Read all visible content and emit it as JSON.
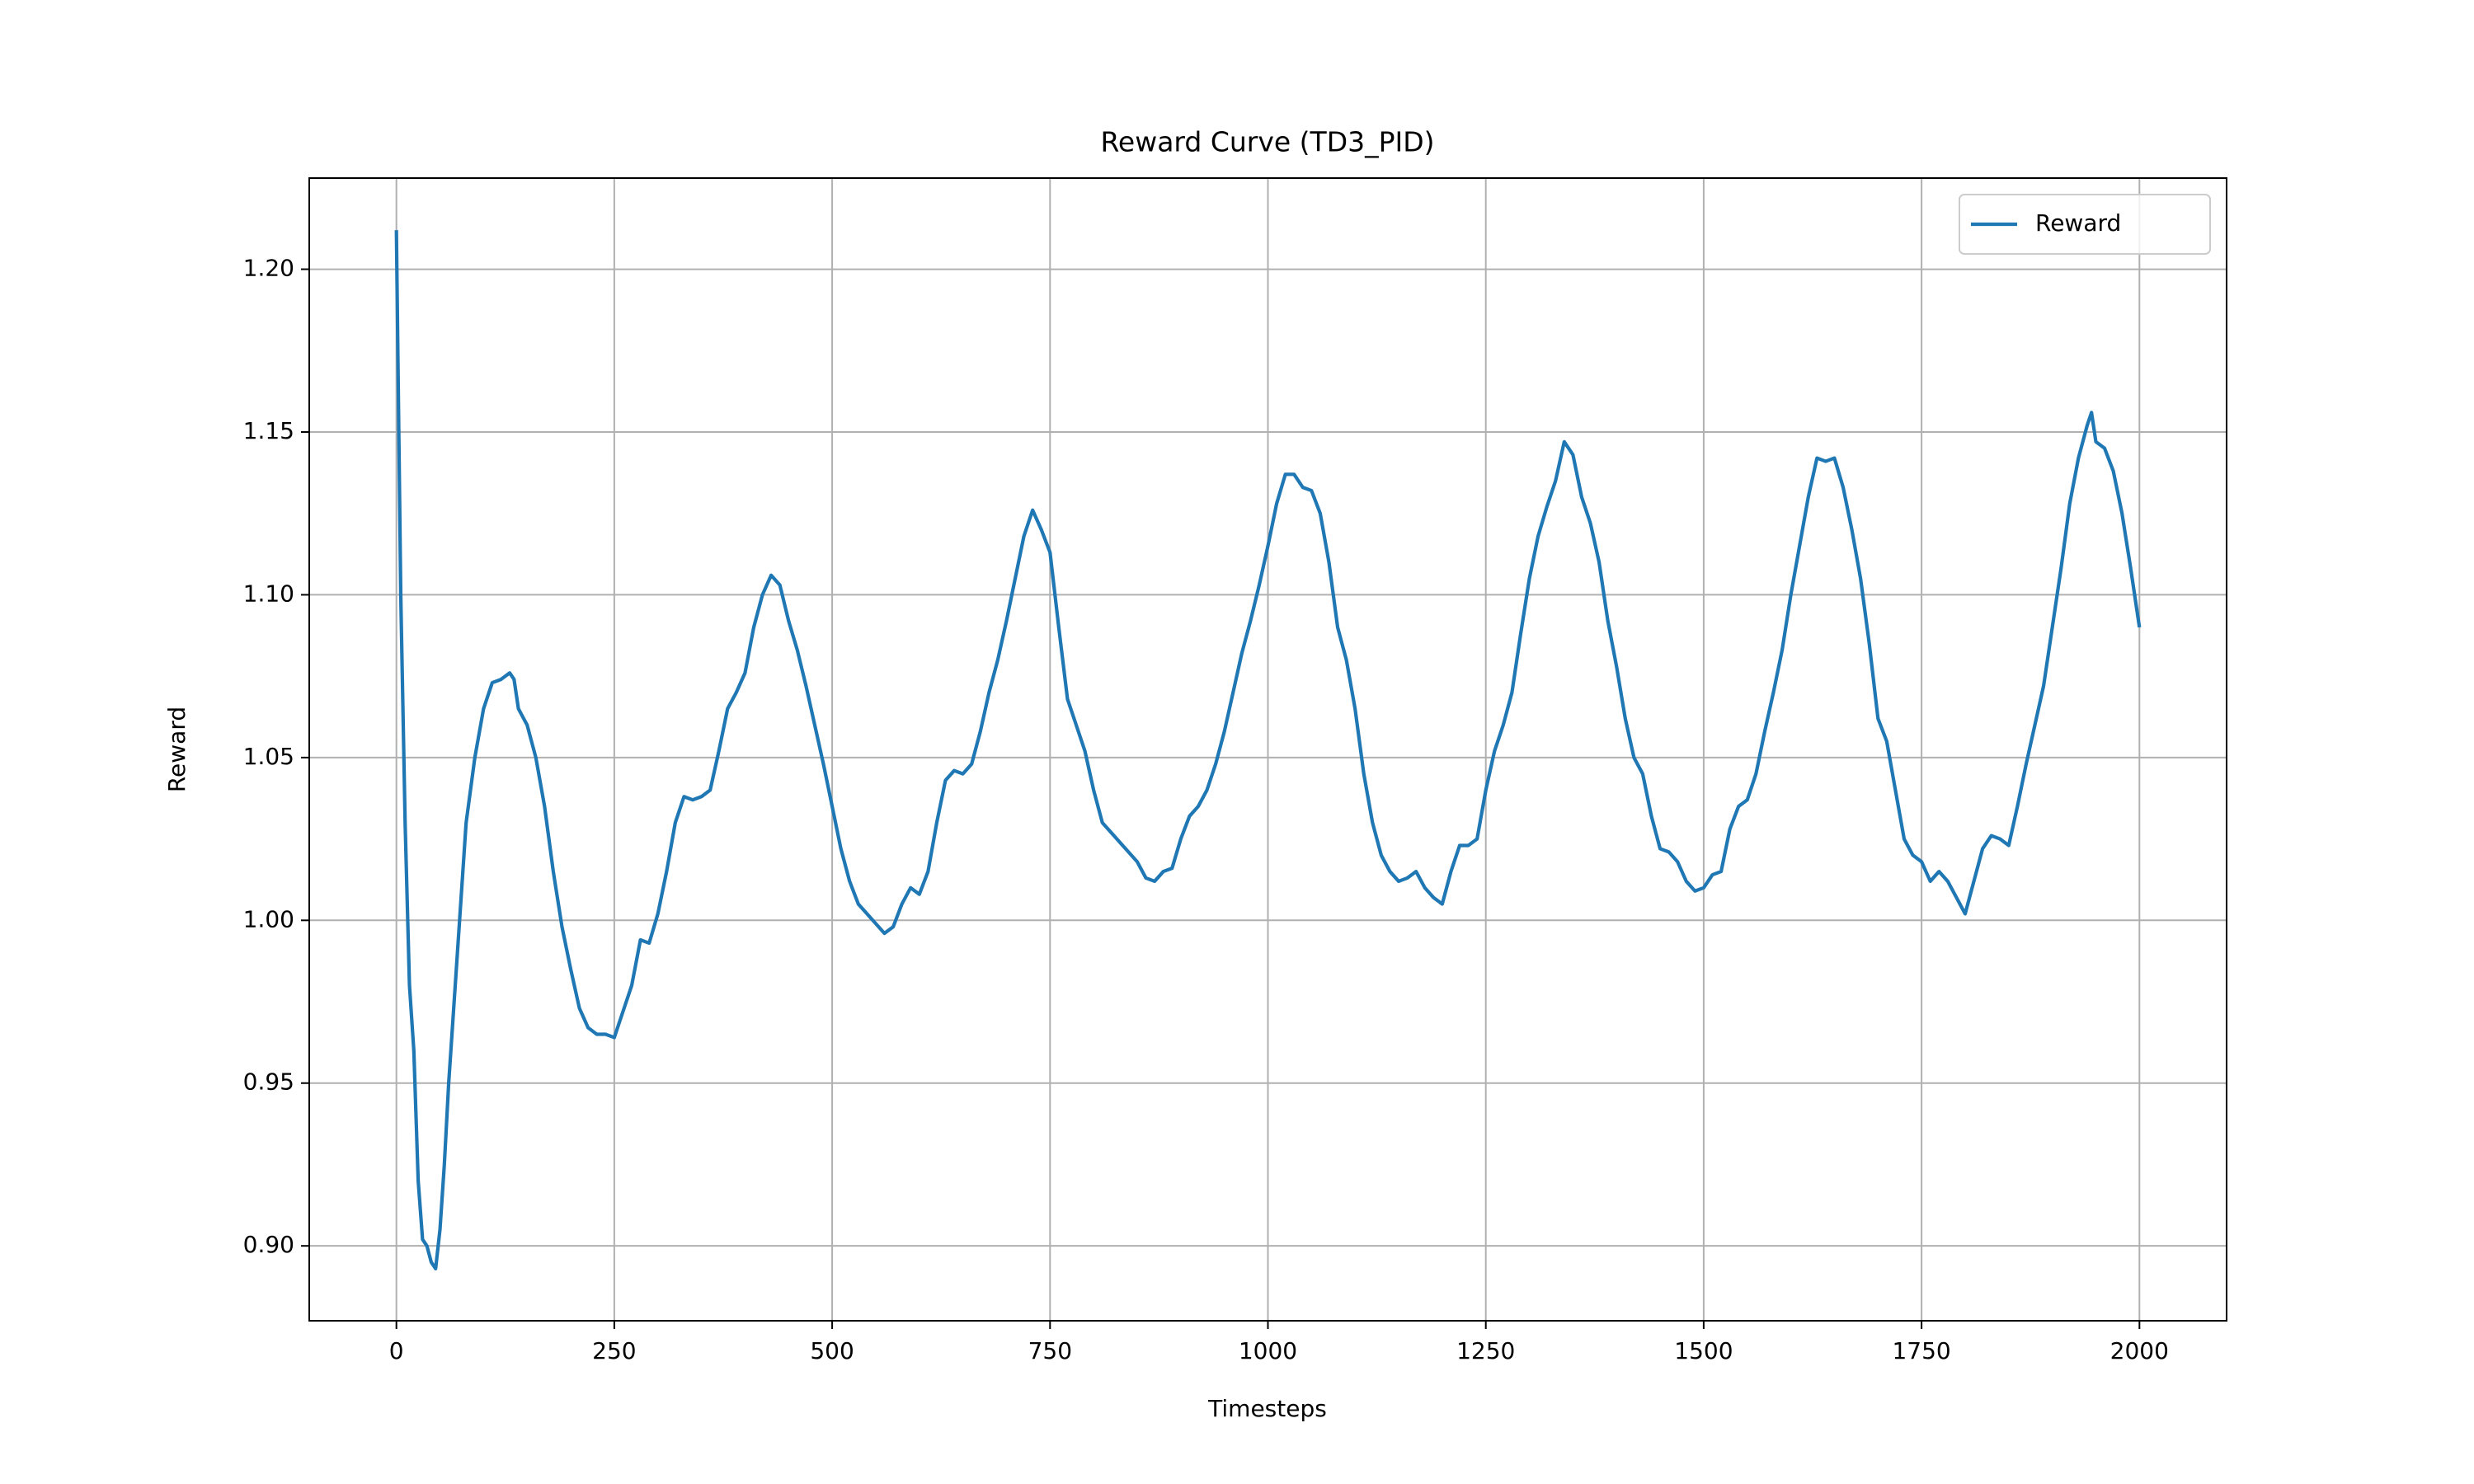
{
  "chart_data": {
    "type": "line",
    "title": "Reward Curve (TD3_PID)",
    "x_label": "Timesteps",
    "y_label": "Reward",
    "x": [
      0,
      5,
      10,
      15,
      20,
      25,
      30,
      35,
      40,
      45,
      50,
      55,
      60,
      70,
      80,
      90,
      100,
      110,
      120,
      130,
      135,
      140,
      150,
      160,
      170,
      180,
      190,
      200,
      210,
      220,
      230,
      240,
      250,
      260,
      270,
      280,
      290,
      300,
      310,
      320,
      330,
      340,
      350,
      360,
      370,
      380,
      390,
      400,
      410,
      420,
      430,
      440,
      450,
      460,
      470,
      480,
      490,
      500,
      510,
      520,
      530,
      540,
      550,
      560,
      570,
      580,
      590,
      600,
      610,
      620,
      630,
      640,
      650,
      660,
      670,
      680,
      690,
      700,
      710,
      720,
      730,
      740,
      750,
      760,
      770,
      780,
      790,
      800,
      810,
      820,
      830,
      840,
      850,
      860,
      870,
      880,
      890,
      900,
      910,
      920,
      930,
      940,
      950,
      960,
      970,
      980,
      990,
      1000,
      1010,
      1020,
      1030,
      1040,
      1050,
      1060,
      1070,
      1080,
      1090,
      1100,
      1110,
      1120,
      1130,
      1140,
      1150,
      1160,
      1170,
      1180,
      1190,
      1200,
      1210,
      1220,
      1230,
      1240,
      1250,
      1260,
      1270,
      1280,
      1290,
      1300,
      1310,
      1320,
      1330,
      1340,
      1350,
      1360,
      1370,
      1380,
      1390,
      1400,
      1410,
      1420,
      1430,
      1440,
      1450,
      1460,
      1470,
      1480,
      1490,
      1500,
      1510,
      1520,
      1530,
      1540,
      1550,
      1560,
      1570,
      1580,
      1590,
      1600,
      1610,
      1620,
      1630,
      1640,
      1650,
      1660,
      1670,
      1680,
      1690,
      1700,
      1710,
      1720,
      1730,
      1740,
      1750,
      1760,
      1770,
      1780,
      1790,
      1800,
      1810,
      1820,
      1830,
      1840,
      1850,
      1860,
      1870,
      1880,
      1890,
      1900,
      1910,
      1920,
      1930,
      1940,
      1945,
      1950,
      1960,
      1970,
      1980,
      1990,
      2000
    ],
    "series": [
      {
        "name": "Reward",
        "color": "#1f77b4",
        "values": [
          1.212,
          1.1,
          1.03,
          0.98,
          0.96,
          0.92,
          0.902,
          0.9,
          0.895,
          0.893,
          0.905,
          0.925,
          0.95,
          0.99,
          1.03,
          1.05,
          1.065,
          1.073,
          1.074,
          1.076,
          1.074,
          1.065,
          1.06,
          1.05,
          1.035,
          1.015,
          0.998,
          0.985,
          0.973,
          0.967,
          0.965,
          0.965,
          0.964,
          0.972,
          0.98,
          0.994,
          0.993,
          1.002,
          1.015,
          1.03,
          1.038,
          1.037,
          1.038,
          1.04,
          1.052,
          1.065,
          1.07,
          1.076,
          1.09,
          1.1,
          1.106,
          1.103,
          1.092,
          1.083,
          1.072,
          1.06,
          1.048,
          1.035,
          1.022,
          1.012,
          1.005,
          1.002,
          0.999,
          0.996,
          0.998,
          1.005,
          1.01,
          1.008,
          1.015,
          1.03,
          1.043,
          1.046,
          1.045,
          1.048,
          1.058,
          1.07,
          1.08,
          1.092,
          1.105,
          1.118,
          1.126,
          1.12,
          1.113,
          1.09,
          1.068,
          1.06,
          1.052,
          1.04,
          1.03,
          1.027,
          1.024,
          1.021,
          1.018,
          1.013,
          1.012,
          1.015,
          1.016,
          1.025,
          1.032,
          1.035,
          1.04,
          1.048,
          1.058,
          1.07,
          1.082,
          1.092,
          1.103,
          1.115,
          1.128,
          1.137,
          1.137,
          1.133,
          1.132,
          1.125,
          1.11,
          1.09,
          1.08,
          1.065,
          1.045,
          1.03,
          1.02,
          1.015,
          1.012,
          1.013,
          1.015,
          1.01,
          1.007,
          1.005,
          1.015,
          1.023,
          1.023,
          1.025,
          1.04,
          1.052,
          1.06,
          1.07,
          1.088,
          1.105,
          1.118,
          1.127,
          1.135,
          1.147,
          1.143,
          1.13,
          1.122,
          1.11,
          1.092,
          1.078,
          1.062,
          1.05,
          1.045,
          1.032,
          1.022,
          1.021,
          1.018,
          1.012,
          1.009,
          1.01,
          1.014,
          1.015,
          1.028,
          1.035,
          1.037,
          1.045,
          1.058,
          1.07,
          1.083,
          1.1,
          1.115,
          1.13,
          1.142,
          1.141,
          1.142,
          1.133,
          1.12,
          1.105,
          1.085,
          1.062,
          1.055,
          1.04,
          1.025,
          1.02,
          1.018,
          1.012,
          1.015,
          1.012,
          1.007,
          1.002,
          1.012,
          1.022,
          1.026,
          1.025,
          1.023,
          1.035,
          1.048,
          1.06,
          1.072,
          1.09,
          1.108,
          1.128,
          1.142,
          1.152,
          1.156,
          1.147,
          1.145,
          1.138,
          1.125,
          1.108,
          1.09
        ]
      }
    ],
    "xlim": [
      -100,
      2100
    ],
    "ylim": [
      0.877,
      1.228
    ],
    "xticks": [
      0,
      250,
      500,
      750,
      1000,
      1250,
      1500,
      1750,
      2000
    ],
    "yticks": [
      {
        "value": 0.9,
        "label": "0.90"
      },
      {
        "value": 0.95,
        "label": "0.95"
      },
      {
        "value": 1.0,
        "label": "1.00"
      },
      {
        "value": 1.05,
        "label": "1.05"
      },
      {
        "value": 1.1,
        "label": "1.10"
      },
      {
        "value": 1.15,
        "label": "1.15"
      },
      {
        "value": 1.2,
        "label": "1.20"
      }
    ],
    "grid": true,
    "legend": "upper-right"
  }
}
